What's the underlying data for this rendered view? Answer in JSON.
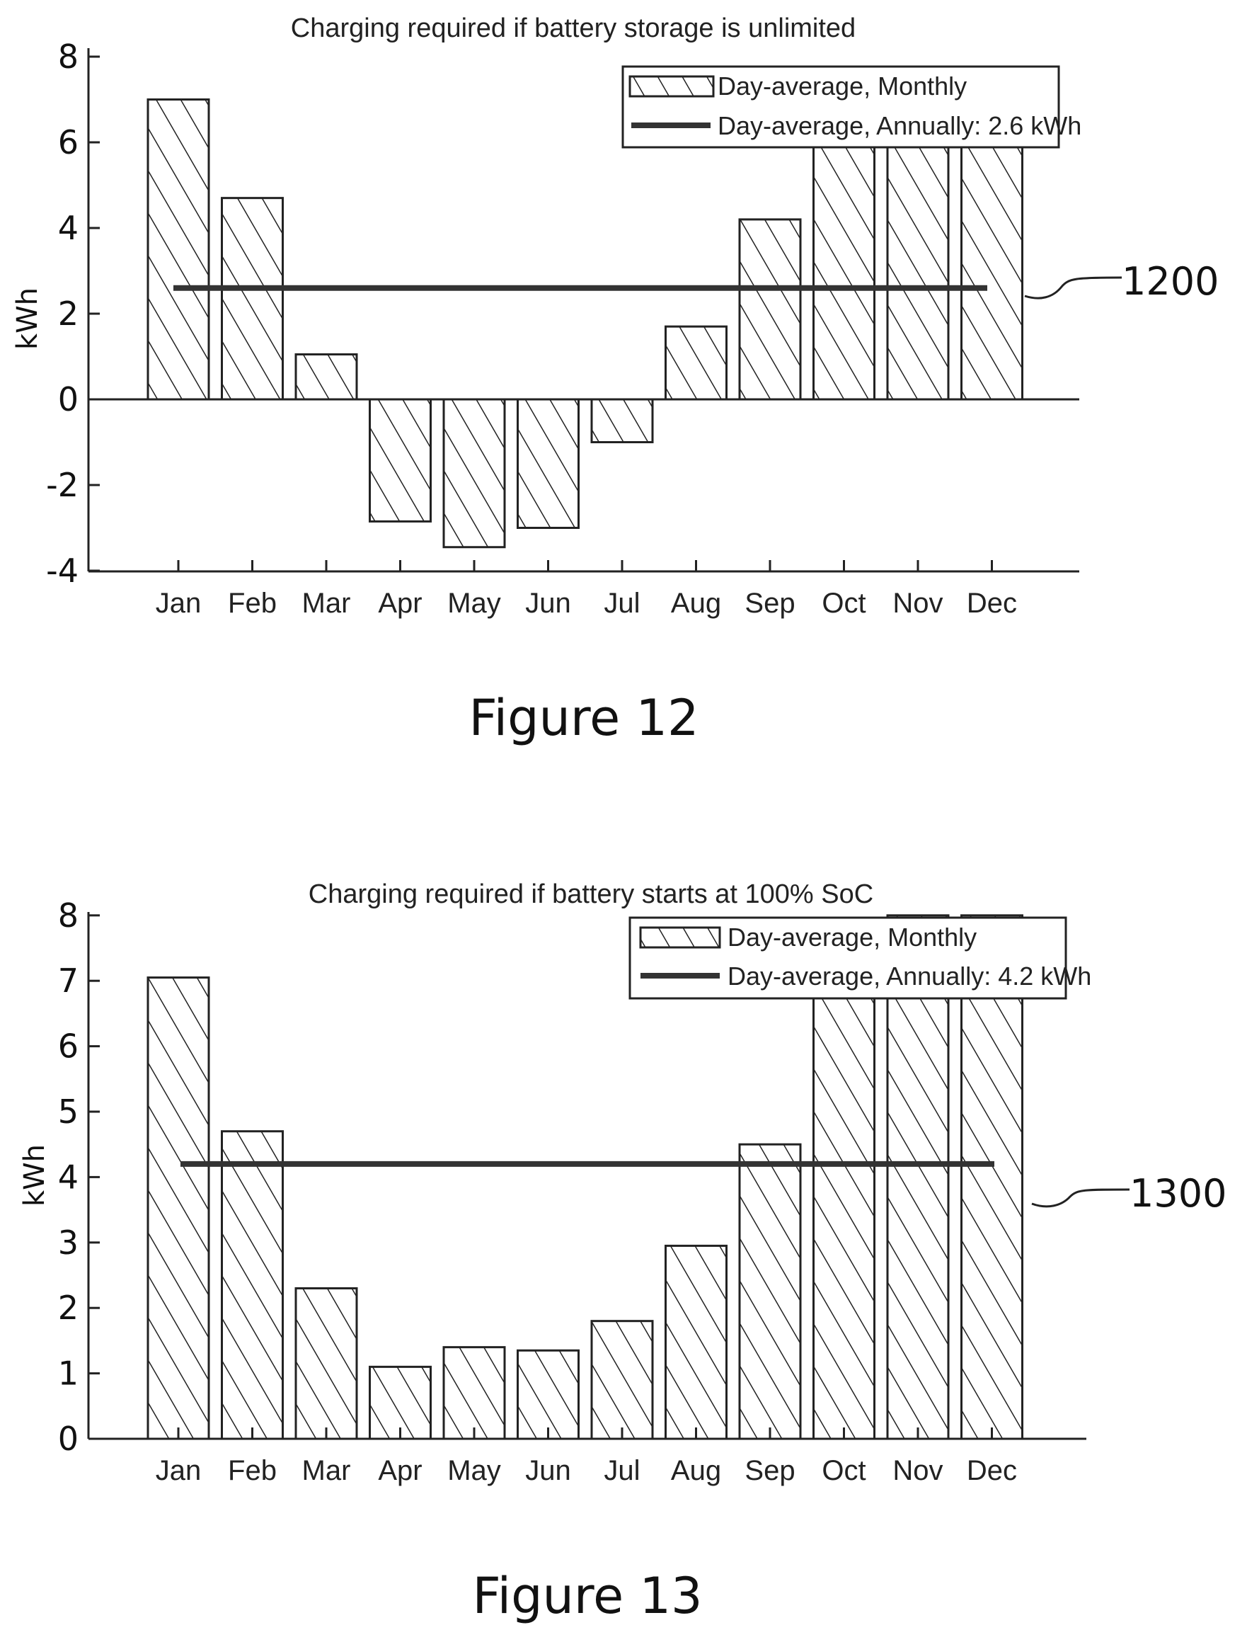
{
  "chart_data": [
    {
      "type": "bar",
      "figure_label": "Figure 12",
      "reference_numeral": "1200",
      "title": "Charging required if battery storage is unlimited",
      "ylabel": "kWh",
      "xlabel": "",
      "ylim": [
        -4,
        8
      ],
      "yticks": [
        -4,
        -2,
        0,
        2,
        4,
        6,
        8
      ],
      "categories": [
        "Jan",
        "Feb",
        "Mar",
        "Apr",
        "May",
        "Jun",
        "Jul",
        "Aug",
        "Sep",
        "Oct",
        "Nov",
        "Dec"
      ],
      "series": [
        {
          "name": "Day-average, Monthly",
          "values": [
            7.0,
            4.7,
            1.05,
            -2.85,
            -3.45,
            -3.0,
            -1.0,
            1.7,
            4.2,
            6.0,
            7.7,
            7.7
          ]
        }
      ],
      "reference_line": {
        "name": "Day-average, Annually: 2.6 kWh",
        "value": 2.6
      },
      "legend_entries": [
        "Day-average, Monthly",
        "Day-average, Annually: 2.6 kWh"
      ],
      "legend_position": "top-right",
      "grid": false
    },
    {
      "type": "bar",
      "figure_label": "Figure 13",
      "reference_numeral": "1300",
      "title": "Charging required if battery starts at 100% SoC",
      "ylabel": "kWh",
      "xlabel": "",
      "ylim": [
        0,
        8
      ],
      "yticks": [
        0,
        1,
        2,
        3,
        4,
        5,
        6,
        7,
        8
      ],
      "categories": [
        "Jan",
        "Feb",
        "Mar",
        "Apr",
        "May",
        "Jun",
        "Jul",
        "Aug",
        "Sep",
        "Oct",
        "Nov",
        "Dec"
      ],
      "series": [
        {
          "name": "Day-average, Monthly",
          "values": [
            7.05,
            4.7,
            2.3,
            1.1,
            1.4,
            1.35,
            1.8,
            2.95,
            4.5,
            7.3,
            8.0,
            8.0
          ]
        }
      ],
      "reference_line": {
        "name": "Day-average, Annually: 4.2 kWh",
        "value": 4.2
      },
      "legend_entries": [
        "Day-average, Monthly",
        "Day-average, Annually: 4.2 kWh"
      ],
      "legend_position": "top-right",
      "grid": false
    }
  ]
}
